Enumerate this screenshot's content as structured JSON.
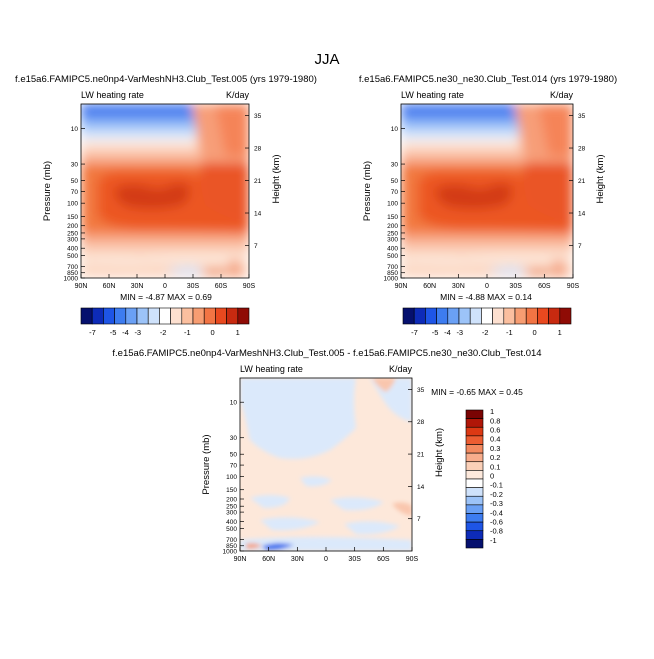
{
  "page": {
    "main_title": "JJA"
  },
  "colors": {
    "cbar_top": [
      "#05106e",
      "#0d2bb8",
      "#1e55e6",
      "#3d7cf0",
      "#6aa0f5",
      "#9cc3f8",
      "#cfe2fb",
      "#ffffff",
      "#fde0d0",
      "#fbbf9f",
      "#f79d72",
      "#f27444",
      "#e9491f",
      "#c82a10",
      "#8f0b05"
    ],
    "cbar_diff": [
      "#05106e",
      "#0d2bb8",
      "#1e55e6",
      "#3d7cf0",
      "#6aa0f5",
      "#9cc3f8",
      "#cfe2fb",
      "#ffffff",
      "#fde9dc",
      "#fbd0b8",
      "#f8ad8c",
      "#f38a60",
      "#ec5d32",
      "#dc3914",
      "#b01608",
      "#7a0403"
    ]
  },
  "chart_data": [
    {
      "type": "contour",
      "title": "f.e15a6.FAMIPC5.ne0np4-VarMeshNH3.Club_Test.005 (yrs 1979-1980)",
      "left_label": "LW heating rate",
      "right_label": "K/day",
      "ylabel": "Pressure (mb)",
      "ylabel_right": "Height (km)",
      "x_ticks": [
        "90N",
        "60N",
        "30N",
        "0",
        "30S",
        "60S",
        "90S"
      ],
      "y_ticks": [
        "10",
        "30",
        "50",
        "70",
        "100",
        "150",
        "200",
        "250",
        "300",
        "400",
        "500",
        "700",
        "850",
        "1000"
      ],
      "y_ticks_right": [
        "35",
        "28",
        "21",
        "14",
        "7"
      ],
      "stats": "MIN = -4.87   MAX =  0.69",
      "colorbar_labels": [
        "-7",
        "-5",
        "-4",
        "-3",
        "-2",
        "-1",
        "0",
        "1"
      ]
    },
    {
      "type": "contour",
      "title": "f.e15a6.FAMIPC5.ne30_ne30.Club_Test.014 (yrs 1979-1980)",
      "left_label": "LW heating rate",
      "right_label": "K/day",
      "ylabel": "Pressure (mb)",
      "ylabel_right": "Height (km)",
      "x_ticks": [
        "90N",
        "60N",
        "30N",
        "0",
        "30S",
        "60S",
        "90S"
      ],
      "y_ticks": [
        "10",
        "30",
        "50",
        "70",
        "100",
        "150",
        "200",
        "250",
        "300",
        "400",
        "500",
        "700",
        "850",
        "1000"
      ],
      "y_ticks_right": [
        "35",
        "28",
        "21",
        "14",
        "7"
      ],
      "stats": "MIN = -4.88   MAX =  0.14",
      "colorbar_labels": [
        "-7",
        "-5",
        "-4",
        "-3",
        "-2",
        "-1",
        "0",
        "1"
      ]
    },
    {
      "type": "contour",
      "title": "f.e15a6.FAMIPC5.ne0np4-VarMeshNH3.Club_Test.005 - f.e15a6.FAMIPC5.ne30_ne30.Club_Test.014",
      "left_label": "LW heating rate",
      "right_label": "K/day",
      "ylabel": "Pressure (mb)",
      "ylabel_right": "Height (km)",
      "x_ticks": [
        "90N",
        "60N",
        "30N",
        "0",
        "30S",
        "60S",
        "90S"
      ],
      "y_ticks": [
        "10",
        "30",
        "50",
        "70",
        "100",
        "150",
        "200",
        "250",
        "300",
        "400",
        "500",
        "700",
        "850",
        "1000"
      ],
      "y_ticks_right": [
        "35",
        "28",
        "21",
        "14",
        "7"
      ],
      "stats": "MIN = -0.65  MAX =  0.45",
      "colorbar_labels": [
        "1",
        "0.8",
        "0.6",
        "0.4",
        "0.3",
        "0.2",
        "0.1",
        "0",
        "-0.1",
        "-0.2",
        "-0.3",
        "-0.4",
        "-0.6",
        "-0.8",
        "-1"
      ]
    }
  ]
}
